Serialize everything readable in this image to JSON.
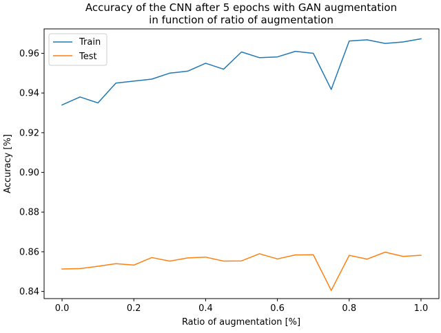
{
  "chart_data": {
    "type": "line",
    "title_line1": "Accuracy of the CNN after 5 epochs with GAN augmentation",
    "title_line2": "in function of ratio of augmentation",
    "xlabel": "Ratio of augmentation [%]",
    "ylabel": "Accuracy [%]",
    "xlim": [
      -0.05,
      1.05
    ],
    "ylim": [
      0.8364,
      0.9723
    ],
    "xticks": [
      0.0,
      0.2,
      0.4,
      0.6,
      0.8,
      1.0
    ],
    "xtick_labels": [
      "0.0",
      "0.2",
      "0.4",
      "0.6",
      "0.8",
      "1.0"
    ],
    "yticks": [
      0.84,
      0.86,
      0.88,
      0.9,
      0.92,
      0.94,
      0.96
    ],
    "ytick_labels": [
      "0.84",
      "0.86",
      "0.88",
      "0.90",
      "0.92",
      "0.94",
      "0.96"
    ],
    "grid": false,
    "legend_position": "top-left",
    "x": [
      0.0,
      0.05,
      0.1,
      0.15,
      0.2,
      0.25,
      0.3,
      0.35,
      0.4,
      0.45,
      0.5,
      0.55,
      0.6,
      0.65,
      0.7,
      0.75,
      0.8,
      0.85,
      0.9,
      0.95,
      1.0
    ],
    "series": [
      {
        "name": "Train",
        "color": "#1f77b4",
        "values": [
          0.934,
          0.938,
          0.935,
          0.945,
          0.946,
          0.947,
          0.95,
          0.951,
          0.955,
          0.952,
          0.9607,
          0.9578,
          0.9582,
          0.961,
          0.96,
          0.9418,
          0.9662,
          0.9668,
          0.965,
          0.9657,
          0.9673
        ]
      },
      {
        "name": "Test",
        "color": "#ff7f0e",
        "values": [
          0.8513,
          0.8515,
          0.8527,
          0.854,
          0.8533,
          0.8571,
          0.8553,
          0.8569,
          0.8573,
          0.8553,
          0.8554,
          0.859,
          0.8564,
          0.8584,
          0.8585,
          0.8405,
          0.8582,
          0.8563,
          0.8598,
          0.8577,
          0.8582
        ]
      }
    ]
  }
}
